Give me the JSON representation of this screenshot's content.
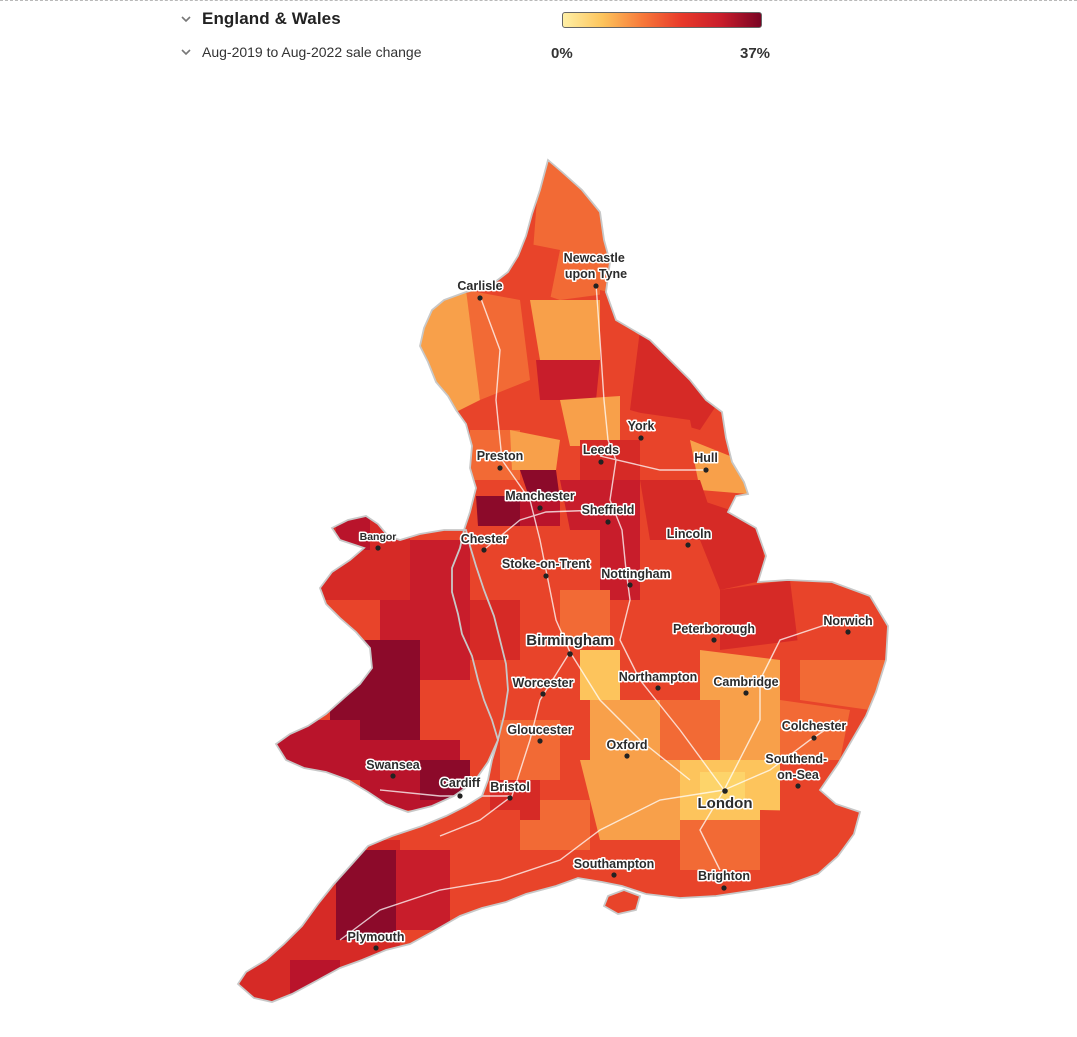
{
  "header": {
    "region_selector": {
      "value": "England & Wales",
      "icon": "chevron-down-icon"
    },
    "metric_selector": {
      "value": "Aug-2019 to Aug-2022 sale change",
      "icon": "chevron-down-icon"
    }
  },
  "legend": {
    "min_label": "0%",
    "max_label": "37%",
    "min_value": 0,
    "max_value": 37,
    "colors": [
      "#fff0a6",
      "#fdc45c",
      "#f7793a",
      "#e8392a",
      "#c81d2b",
      "#7a0424"
    ]
  },
  "map": {
    "region": "England & Wales",
    "colors": {
      "very_high": "#8c0a2a",
      "high": "#b9142b",
      "medium_high": "#d62a26",
      "medium": "#e8442a",
      "medium_low": "#f26a35",
      "low": "#f8a04a",
      "very_low": "#fdd46a"
    },
    "cities": [
      {
        "name": "Carlisle",
        "size": "normal"
      },
      {
        "name": "Newcastle upon Tyne",
        "size": "normal"
      },
      {
        "name": "York",
        "size": "normal"
      },
      {
        "name": "Preston",
        "size": "normal"
      },
      {
        "name": "Leeds",
        "size": "normal"
      },
      {
        "name": "Hull",
        "size": "normal"
      },
      {
        "name": "Manchester",
        "size": "normal"
      },
      {
        "name": "Sheffield",
        "size": "normal"
      },
      {
        "name": "Bangor",
        "size": "small"
      },
      {
        "name": "Chester",
        "size": "normal"
      },
      {
        "name": "Lincoln",
        "size": "normal"
      },
      {
        "name": "Stoke-on-Trent",
        "size": "normal"
      },
      {
        "name": "Nottingham",
        "size": "normal"
      },
      {
        "name": "Norwich",
        "size": "normal"
      },
      {
        "name": "Peterborough",
        "size": "normal"
      },
      {
        "name": "Birmingham",
        "size": "large"
      },
      {
        "name": "Northampton",
        "size": "normal"
      },
      {
        "name": "Cambridge",
        "size": "normal"
      },
      {
        "name": "Worcester",
        "size": "normal"
      },
      {
        "name": "Colchester",
        "size": "normal"
      },
      {
        "name": "Gloucester",
        "size": "normal"
      },
      {
        "name": "Oxford",
        "size": "normal"
      },
      {
        "name": "Swansea",
        "size": "normal"
      },
      {
        "name": "Cardiff",
        "size": "normal"
      },
      {
        "name": "Bristol",
        "size": "normal"
      },
      {
        "name": "Southend-on-Sea",
        "size": "normal"
      },
      {
        "name": "London",
        "size": "large"
      },
      {
        "name": "Southampton",
        "size": "normal"
      },
      {
        "name": "Brighton",
        "size": "normal"
      },
      {
        "name": "Plymouth",
        "size": "normal"
      }
    ]
  }
}
